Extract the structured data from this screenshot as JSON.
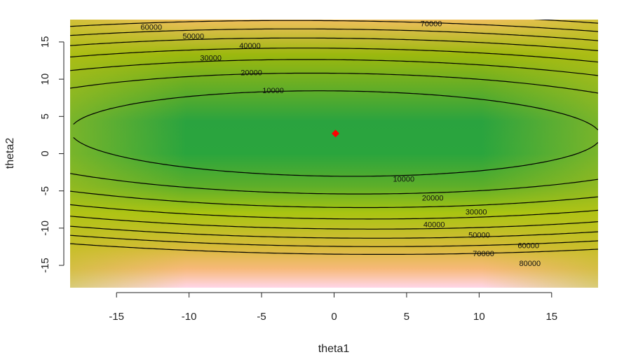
{
  "chart_data": {
    "type": "contour",
    "xlabel": "theta1",
    "ylabel": "theta2",
    "xlim": [
      -18.2,
      18.2
    ],
    "ylim": [
      -18,
      18
    ],
    "x_ticks": [
      -15,
      -10,
      -5,
      0,
      5,
      10,
      15
    ],
    "y_ticks": [
      -15,
      -10,
      -5,
      0,
      5,
      10,
      15
    ],
    "x_tick_labels": [
      "-15",
      "-10",
      "-5",
      "0",
      "5",
      "10",
      "15"
    ],
    "y_tick_labels": [
      "-15",
      "-10",
      "-5",
      "0",
      "5",
      "10",
      "15"
    ],
    "contour_levels": [
      10000,
      20000,
      30000,
      40000,
      50000,
      60000,
      70000,
      80000
    ],
    "contour_labels": [
      {
        "text": "10000",
        "x": -4.2,
        "y": 8.5
      },
      {
        "text": "20000",
        "x": -5.7,
        "y": 10.9
      },
      {
        "text": "30000",
        "x": -8.5,
        "y": 12.9
      },
      {
        "text": "40000",
        "x": -5.8,
        "y": 14.5
      },
      {
        "text": "50000",
        "x": -9.7,
        "y": 15.8
      },
      {
        "text": "60000",
        "x": -12.6,
        "y": 17.0
      },
      {
        "text": "70000",
        "x": 6.7,
        "y": 17.5
      },
      {
        "text": "10000",
        "x": 4.8,
        "y": -3.4
      },
      {
        "text": "20000",
        "x": 6.8,
        "y": -5.9
      },
      {
        "text": "40000",
        "x": 6.9,
        "y": -9.5
      },
      {
        "text": "30000",
        "x": 9.8,
        "y": -7.8
      },
      {
        "text": "50000",
        "x": 10.0,
        "y": -10.9
      },
      {
        "text": "60000",
        "x": 13.4,
        "y": -12.3
      },
      {
        "text": "70000",
        "x": 10.3,
        "y": -13.4
      },
      {
        "text": "80000",
        "x": 13.5,
        "y": -14.7
      }
    ],
    "minimum_point": {
      "x": 0.1,
      "y": 2.7
    },
    "colors": {
      "minimum_marker": "#ff0000",
      "low": "#26a640",
      "mid": "#a8c410",
      "high": "#e2b25a",
      "highest": "#ffd6e8",
      "contour_line": "#000000"
    }
  }
}
